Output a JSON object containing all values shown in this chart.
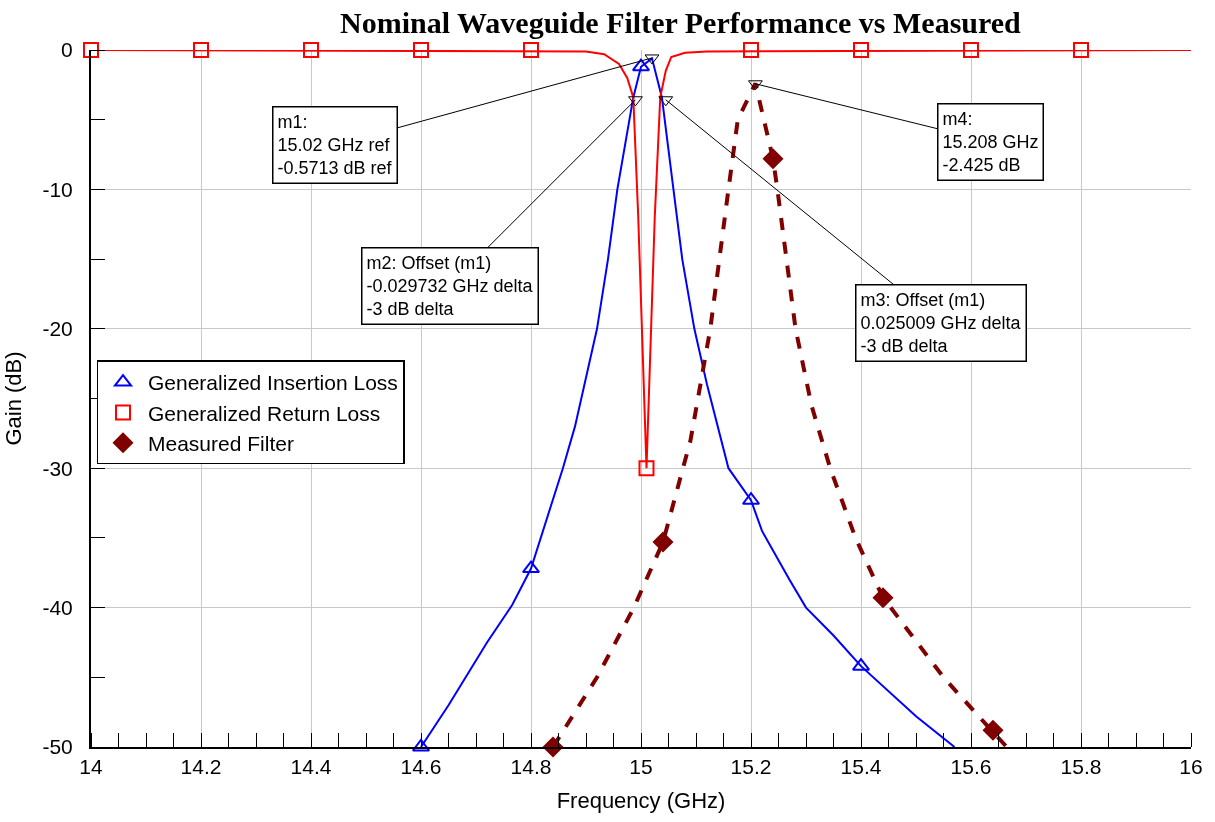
{
  "chart_data": {
    "type": "line",
    "title": "Nominal Waveguide Filter Performance vs Measured",
    "xlabel": "Frequency (GHz)",
    "ylabel": "Gain (dB)",
    "xlim": [
      14,
      16
    ],
    "ylim": [
      -50,
      0
    ],
    "xticks": [
      14,
      14.2,
      14.4,
      14.6,
      14.8,
      15,
      15.2,
      15.4,
      15.6,
      15.8,
      16
    ],
    "yticks": [
      0,
      -10,
      -20,
      -30,
      -40,
      -50
    ],
    "grid": true,
    "legend": "left",
    "series": [
      {
        "color": "#0000ff",
        "line_style": "solid",
        "x": [
          14.6,
          14.65,
          14.72,
          14.766,
          14.8,
          14.858,
          14.88,
          14.92,
          14.94,
          14.957,
          14.986,
          15.0,
          15.02,
          15.038,
          15.059,
          15.075,
          15.097,
          15.12,
          15.159,
          15.2,
          15.22,
          15.27,
          15.3,
          15.35,
          15.4,
          15.5,
          15.57
        ],
        "values": [
          -50,
          -47,
          -42.5,
          -39.8,
          -37.2,
          -30,
          -27,
          -20,
          -15,
          -10,
          -3.4,
          -1.2,
          -0.6,
          -3.4,
          -10,
          -15,
          -20,
          -24,
          -30,
          -32.3,
          -34.5,
          -38,
          -40,
          -42,
          -44.2,
          -47.8,
          -50
        ]
      },
      {
        "color": "#ff0000",
        "line_style": "solid",
        "x": [
          14,
          14.9,
          14.933,
          14.96,
          14.975,
          14.986,
          14.995,
          15.01,
          15.025,
          15.035,
          15.045,
          15.055,
          15.08,
          15.12,
          16
        ],
        "values": [
          0,
          -0.1,
          -0.3,
          -1,
          -2,
          -3.4,
          -12,
          -30,
          -12,
          -3.4,
          -1.5,
          -0.5,
          -0.2,
          -0.1,
          0
        ]
      },
      {
        "color": "#800000",
        "line_style": "dashed",
        "x": [
          14.84,
          14.92,
          14.987,
          15.04,
          15.09,
          15.126,
          15.159,
          15.176,
          15.208,
          15.24,
          15.248,
          15.281,
          15.31,
          15.344,
          15.39,
          15.44,
          15.454,
          15.55,
          15.637,
          15.665
        ],
        "values": [
          -50,
          -45,
          -40,
          -35.3,
          -28,
          -20,
          -10,
          -5,
          -2.4,
          -7.8,
          -10,
          -20,
          -25.5,
          -30,
          -35,
          -39.3,
          -40,
          -45,
          -48.8,
          -50
        ]
      },
      {
        "name": "Generalized Insertion Loss",
        "color": "#0000ff",
        "type": "scatter",
        "marker": "triangle",
        "x": [
          14.6,
          14.8,
          15.0,
          15.2,
          15.4
        ],
        "values": [
          -50,
          -37.2,
          -1.2,
          -32.3,
          -44.2
        ]
      },
      {
        "name": "Generalized Return Loss",
        "color": "#ff0000",
        "type": "scatter",
        "marker": "square",
        "x": [
          14,
          14.2,
          14.4,
          14.6,
          14.8,
          15.01,
          15.2,
          15.4,
          15.6,
          15.8
        ],
        "values": [
          0,
          0,
          0,
          0,
          0,
          -30,
          0,
          0,
          0,
          0
        ]
      },
      {
        "name": "Measured Filter",
        "color": "#800000",
        "type": "scatter",
        "marker": "diamond",
        "x": [
          14.84,
          15.04,
          15.24,
          15.44,
          15.64
        ],
        "values": [
          -50,
          -35.3,
          -7.8,
          -39.3,
          -48.8
        ]
      }
    ],
    "annotations": [
      {
        "text": "m1:\n15.02 GHz ref\n-0.5713 dB ref",
        "x": 15.02,
        "y": -0.5713
      },
      {
        "text": "m2: Offset (m1)\n-0.029732 GHz delta\n-3 dB delta",
        "x": 14.99,
        "y": -3.5713
      },
      {
        "text": "m3: Offset (m1)\n0.025009 GHz delta\n-3 dB delta",
        "x": 15.045,
        "y": -3.5713
      },
      {
        "text": "m4:\n15.208 GHz\n-2.425 dB",
        "x": 15.208,
        "y": -2.425
      }
    ]
  }
}
